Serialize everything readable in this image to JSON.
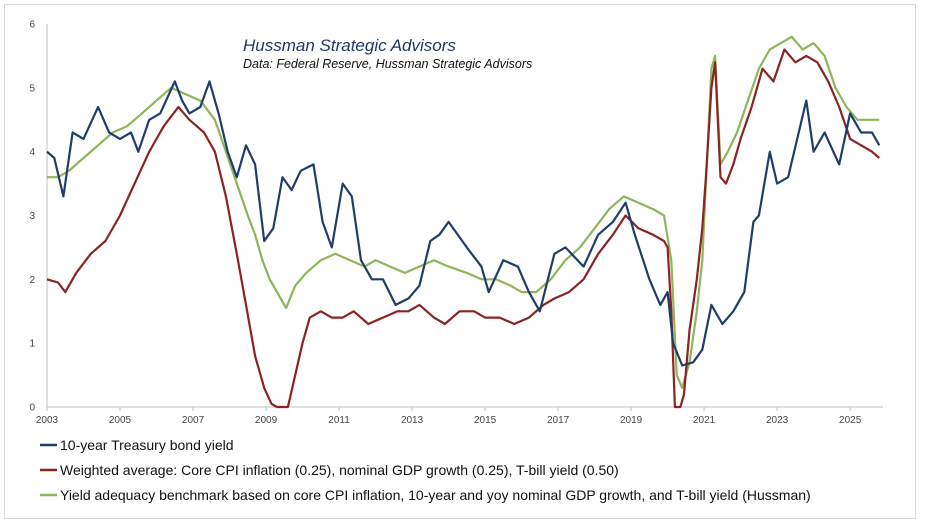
{
  "chart_data": {
    "type": "line",
    "title": "Hussman Strategic Advisors",
    "subtitle": "Data: Federal Reserve, Hussman Strategic Advisors",
    "xlabel": "",
    "ylabel": "",
    "xlim": [
      2003,
      2025.9
    ],
    "ylim": [
      0,
      6
    ],
    "x_ticks": [
      "2003",
      "2005",
      "2007",
      "2009",
      "2011",
      "2013",
      "2015",
      "2017",
      "2019",
      "2021",
      "2023",
      "2025"
    ],
    "y_ticks": [
      "0",
      "1",
      "2",
      "3",
      "4",
      "5",
      "6"
    ],
    "grid": false,
    "legend_position": "bottom",
    "series": [
      {
        "name": "10-year Treasury bond yield",
        "color": "#1f3d6b",
        "points": [
          [
            2003.0,
            4.0
          ],
          [
            2003.2,
            3.9
          ],
          [
            2003.45,
            3.3
          ],
          [
            2003.7,
            4.3
          ],
          [
            2004.0,
            4.2
          ],
          [
            2004.4,
            4.7
          ],
          [
            2004.7,
            4.3
          ],
          [
            2005.0,
            4.2
          ],
          [
            2005.3,
            4.3
          ],
          [
            2005.5,
            4.0
          ],
          [
            2005.8,
            4.5
          ],
          [
            2006.1,
            4.6
          ],
          [
            2006.5,
            5.1
          ],
          [
            2006.7,
            4.8
          ],
          [
            2006.9,
            4.6
          ],
          [
            2007.2,
            4.7
          ],
          [
            2007.45,
            5.1
          ],
          [
            2007.7,
            4.6
          ],
          [
            2007.95,
            4.0
          ],
          [
            2008.2,
            3.6
          ],
          [
            2008.45,
            4.1
          ],
          [
            2008.7,
            3.8
          ],
          [
            2008.95,
            2.6
          ],
          [
            2009.2,
            2.8
          ],
          [
            2009.45,
            3.6
          ],
          [
            2009.7,
            3.4
          ],
          [
            2009.95,
            3.7
          ],
          [
            2010.3,
            3.8
          ],
          [
            2010.55,
            2.9
          ],
          [
            2010.8,
            2.5
          ],
          [
            2011.1,
            3.5
          ],
          [
            2011.35,
            3.3
          ],
          [
            2011.6,
            2.3
          ],
          [
            2011.9,
            2.0
          ],
          [
            2012.2,
            2.0
          ],
          [
            2012.55,
            1.6
          ],
          [
            2012.9,
            1.7
          ],
          [
            2013.2,
            1.9
          ],
          [
            2013.5,
            2.6
          ],
          [
            2013.75,
            2.7
          ],
          [
            2014.0,
            2.9
          ],
          [
            2014.5,
            2.5
          ],
          [
            2014.9,
            2.2
          ],
          [
            2015.1,
            1.8
          ],
          [
            2015.5,
            2.3
          ],
          [
            2015.9,
            2.2
          ],
          [
            2016.2,
            1.8
          ],
          [
            2016.5,
            1.5
          ],
          [
            2016.9,
            2.4
          ],
          [
            2017.2,
            2.5
          ],
          [
            2017.7,
            2.2
          ],
          [
            2018.1,
            2.7
          ],
          [
            2018.5,
            2.9
          ],
          [
            2018.85,
            3.2
          ],
          [
            2019.1,
            2.7
          ],
          [
            2019.5,
            2.0
          ],
          [
            2019.8,
            1.6
          ],
          [
            2020.0,
            1.8
          ],
          [
            2020.15,
            1.0
          ],
          [
            2020.4,
            0.65
          ],
          [
            2020.7,
            0.7
          ],
          [
            2020.95,
            0.9
          ],
          [
            2021.2,
            1.6
          ],
          [
            2021.5,
            1.3
          ],
          [
            2021.8,
            1.5
          ],
          [
            2022.1,
            1.8
          ],
          [
            2022.35,
            2.9
          ],
          [
            2022.5,
            3.0
          ],
          [
            2022.8,
            4.0
          ],
          [
            2023.0,
            3.5
          ],
          [
            2023.3,
            3.6
          ],
          [
            2023.8,
            4.8
          ],
          [
            2024.0,
            4.0
          ],
          [
            2024.3,
            4.3
          ],
          [
            2024.7,
            3.8
          ],
          [
            2025.0,
            4.6
          ],
          [
            2025.3,
            4.3
          ],
          [
            2025.6,
            4.3
          ],
          [
            2025.8,
            4.1
          ]
        ]
      },
      {
        "name": "Weighted average: Core CPI inflation (0.25), nominal GDP growth (0.25), T-bill yield (0.50)",
        "color": "#8b2323",
        "points": [
          [
            2003.0,
            2.0
          ],
          [
            2003.3,
            1.95
          ],
          [
            2003.5,
            1.8
          ],
          [
            2003.8,
            2.1
          ],
          [
            2004.2,
            2.4
          ],
          [
            2004.6,
            2.6
          ],
          [
            2005.0,
            3.0
          ],
          [
            2005.4,
            3.5
          ],
          [
            2005.8,
            4.0
          ],
          [
            2006.2,
            4.4
          ],
          [
            2006.6,
            4.7
          ],
          [
            2006.9,
            4.5
          ],
          [
            2007.3,
            4.3
          ],
          [
            2007.6,
            4.0
          ],
          [
            2007.9,
            3.3
          ],
          [
            2008.2,
            2.4
          ],
          [
            2008.45,
            1.6
          ],
          [
            2008.7,
            0.8
          ],
          [
            2008.95,
            0.3
          ],
          [
            2009.15,
            0.05
          ],
          [
            2009.3,
            0.0
          ],
          [
            2009.45,
            0.0
          ],
          [
            2009.6,
            0.0
          ],
          [
            2009.8,
            0.5
          ],
          [
            2010.0,
            1.0
          ],
          [
            2010.2,
            1.4
          ],
          [
            2010.5,
            1.5
          ],
          [
            2010.8,
            1.4
          ],
          [
            2011.1,
            1.4
          ],
          [
            2011.4,
            1.5
          ],
          [
            2011.8,
            1.3
          ],
          [
            2012.2,
            1.4
          ],
          [
            2012.6,
            1.5
          ],
          [
            2012.9,
            1.5
          ],
          [
            2013.2,
            1.6
          ],
          [
            2013.6,
            1.4
          ],
          [
            2013.9,
            1.3
          ],
          [
            2014.3,
            1.5
          ],
          [
            2014.7,
            1.5
          ],
          [
            2015.0,
            1.4
          ],
          [
            2015.4,
            1.4
          ],
          [
            2015.8,
            1.3
          ],
          [
            2016.2,
            1.4
          ],
          [
            2016.6,
            1.6
          ],
          [
            2016.9,
            1.7
          ],
          [
            2017.3,
            1.8
          ],
          [
            2017.7,
            2.0
          ],
          [
            2018.1,
            2.4
          ],
          [
            2018.5,
            2.7
          ],
          [
            2018.85,
            3.0
          ],
          [
            2019.2,
            2.8
          ],
          [
            2019.6,
            2.7
          ],
          [
            2019.9,
            2.6
          ],
          [
            2020.0,
            2.5
          ],
          [
            2020.1,
            1.5
          ],
          [
            2020.2,
            0.0
          ],
          [
            2020.35,
            0.0
          ],
          [
            2020.45,
            0.2
          ],
          [
            2020.6,
            1.2
          ],
          [
            2020.8,
            2.0
          ],
          [
            2020.95,
            2.8
          ],
          [
            2021.05,
            3.6
          ],
          [
            2021.2,
            5.0
          ],
          [
            2021.3,
            5.4
          ],
          [
            2021.45,
            3.6
          ],
          [
            2021.6,
            3.5
          ],
          [
            2021.8,
            3.8
          ],
          [
            2022.0,
            4.2
          ],
          [
            2022.3,
            4.7
          ],
          [
            2022.6,
            5.3
          ],
          [
            2022.9,
            5.1
          ],
          [
            2023.2,
            5.6
          ],
          [
            2023.5,
            5.4
          ],
          [
            2023.8,
            5.5
          ],
          [
            2024.1,
            5.4
          ],
          [
            2024.4,
            5.1
          ],
          [
            2024.7,
            4.7
          ],
          [
            2025.0,
            4.2
          ],
          [
            2025.3,
            4.1
          ],
          [
            2025.6,
            4.0
          ],
          [
            2025.8,
            3.9
          ]
        ]
      },
      {
        "name": "Yield adequacy benchmark based on core CPI inflation, 10-year and yoy nominal GDP growth, and T-bill yield (Hussman)",
        "color": "#8db65a",
        "points": [
          [
            2003.0,
            3.6
          ],
          [
            2003.3,
            3.6
          ],
          [
            2003.6,
            3.7
          ],
          [
            2004.0,
            3.9
          ],
          [
            2004.4,
            4.1
          ],
          [
            2004.8,
            4.3
          ],
          [
            2005.2,
            4.4
          ],
          [
            2005.6,
            4.6
          ],
          [
            2006.0,
            4.8
          ],
          [
            2006.4,
            5.0
          ],
          [
            2006.8,
            4.9
          ],
          [
            2007.2,
            4.8
          ],
          [
            2007.6,
            4.5
          ],
          [
            2007.9,
            4.0
          ],
          [
            2008.2,
            3.5
          ],
          [
            2008.5,
            3.0
          ],
          [
            2008.7,
            2.7
          ],
          [
            2008.9,
            2.3
          ],
          [
            2009.1,
            2.0
          ],
          [
            2009.3,
            1.8
          ],
          [
            2009.55,
            1.55
          ],
          [
            2009.8,
            1.9
          ],
          [
            2010.1,
            2.1
          ],
          [
            2010.5,
            2.3
          ],
          [
            2010.9,
            2.4
          ],
          [
            2011.3,
            2.3
          ],
          [
            2011.7,
            2.2
          ],
          [
            2012.0,
            2.3
          ],
          [
            2012.4,
            2.2
          ],
          [
            2012.8,
            2.1
          ],
          [
            2013.2,
            2.2
          ],
          [
            2013.6,
            2.3
          ],
          [
            2014.0,
            2.2
          ],
          [
            2014.5,
            2.1
          ],
          [
            2014.9,
            2.0
          ],
          [
            2015.3,
            2.0
          ],
          [
            2015.7,
            1.9
          ],
          [
            2016.0,
            1.8
          ],
          [
            2016.4,
            1.8
          ],
          [
            2016.8,
            2.0
          ],
          [
            2017.2,
            2.3
          ],
          [
            2017.6,
            2.5
          ],
          [
            2018.0,
            2.8
          ],
          [
            2018.4,
            3.1
          ],
          [
            2018.8,
            3.3
          ],
          [
            2019.2,
            3.2
          ],
          [
            2019.6,
            3.1
          ],
          [
            2019.9,
            3.0
          ],
          [
            2020.1,
            2.3
          ],
          [
            2020.25,
            0.5
          ],
          [
            2020.4,
            0.3
          ],
          [
            2020.6,
            0.7
          ],
          [
            2020.8,
            1.5
          ],
          [
            2020.95,
            2.3
          ],
          [
            2021.05,
            3.5
          ],
          [
            2021.2,
            5.3
          ],
          [
            2021.3,
            5.5
          ],
          [
            2021.45,
            3.8
          ],
          [
            2021.65,
            4.0
          ],
          [
            2021.9,
            4.3
          ],
          [
            2022.2,
            4.8
          ],
          [
            2022.5,
            5.3
          ],
          [
            2022.8,
            5.6
          ],
          [
            2023.1,
            5.7
          ],
          [
            2023.4,
            5.8
          ],
          [
            2023.7,
            5.6
          ],
          [
            2024.0,
            5.7
          ],
          [
            2024.3,
            5.5
          ],
          [
            2024.6,
            5.0
          ],
          [
            2024.9,
            4.7
          ],
          [
            2025.2,
            4.5
          ],
          [
            2025.5,
            4.5
          ],
          [
            2025.8,
            4.5
          ]
        ]
      }
    ]
  }
}
